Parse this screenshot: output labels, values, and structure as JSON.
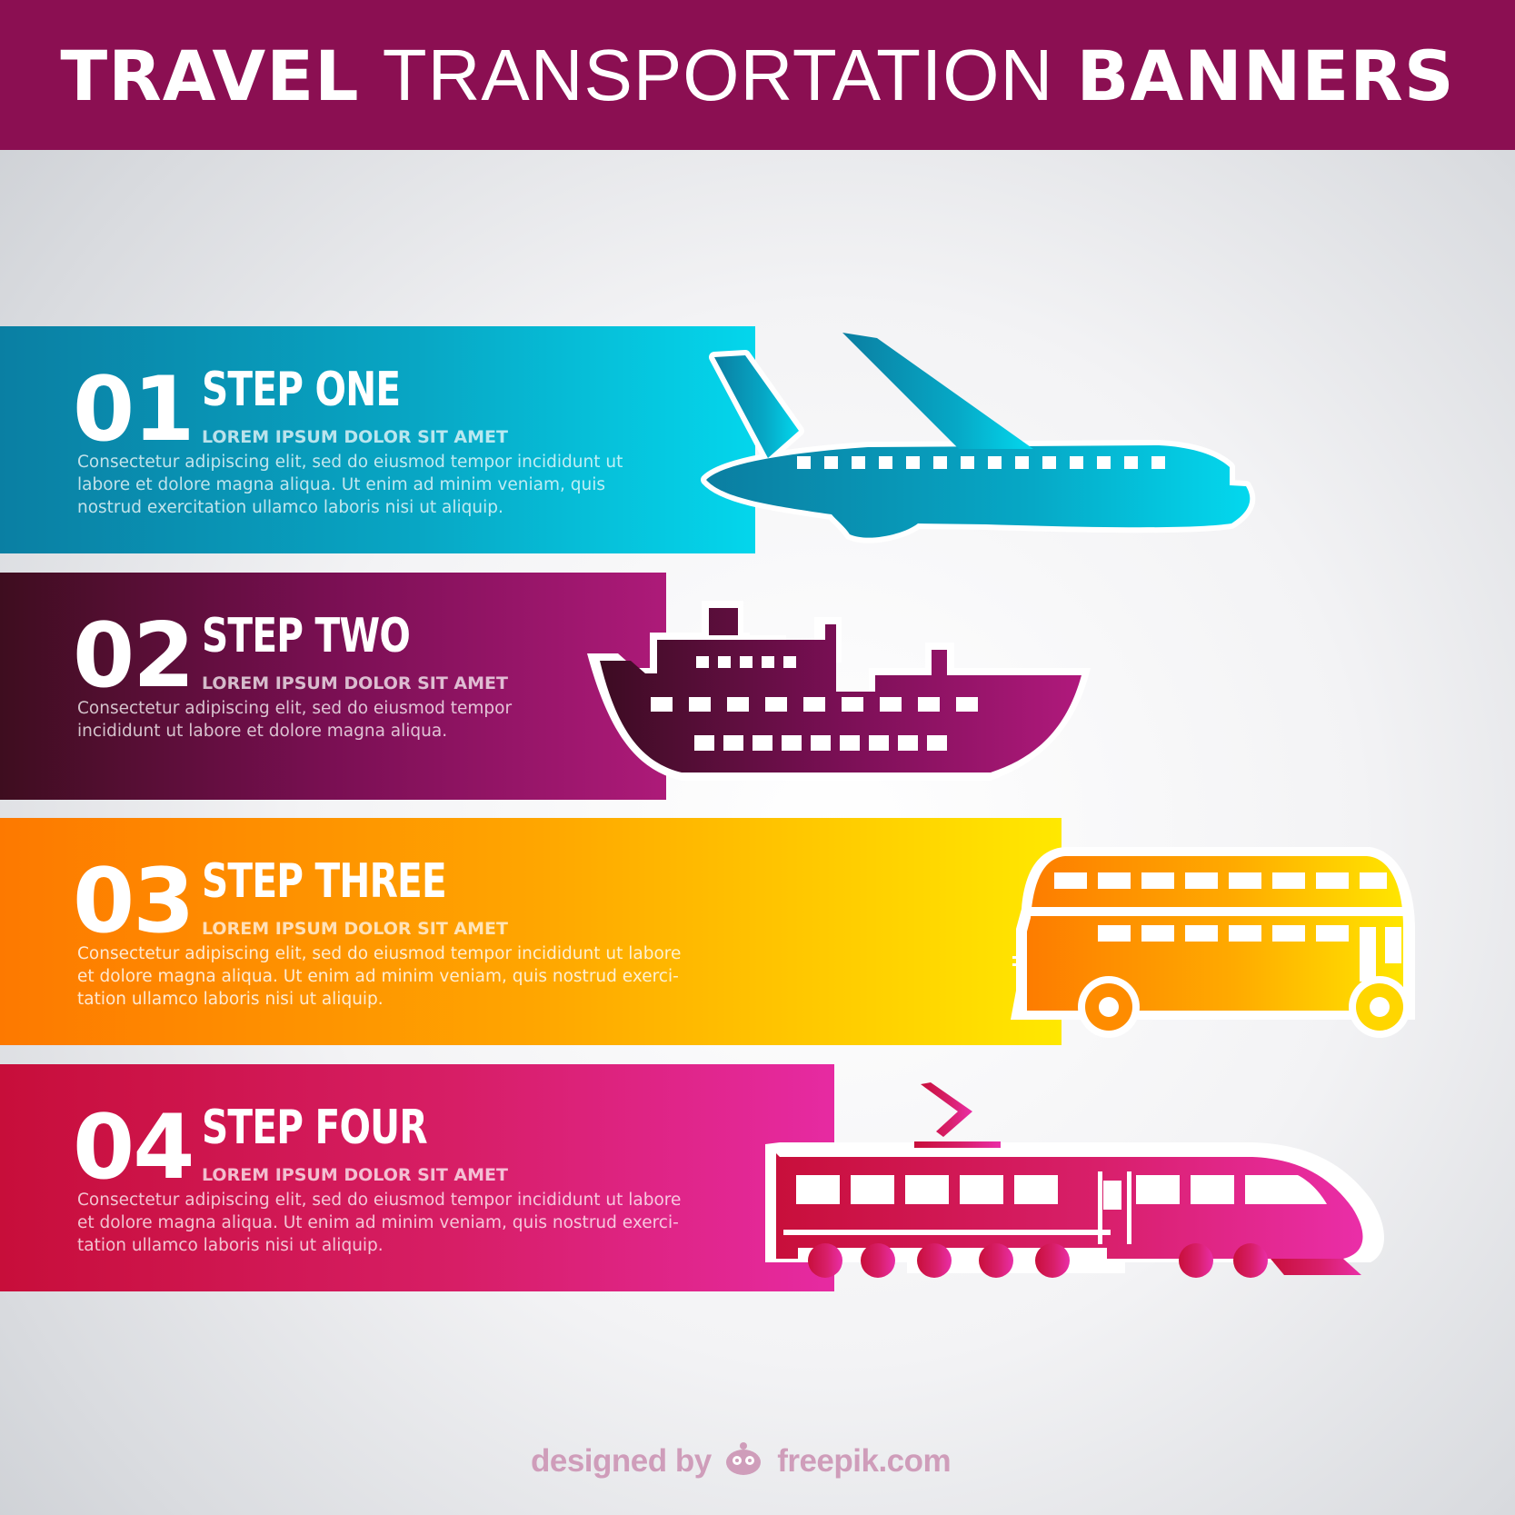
{
  "header": {
    "title_part1": "TRAVEL",
    "title_part2": "TRANSPORTATION",
    "title_part3": "BANNERS",
    "background": "#8b0f52"
  },
  "steps": [
    {
      "number": "01",
      "title": "STEP ONE",
      "subtitle": "LOREM IPSUM DOLOR SIT AMET",
      "text": "Consectetur adipiscing elit, sed do eiusmod tempor incididunt ut\nlabore et dolore magna aliqua. Ut enim ad minim veniam, quis\nnostrud exercitation ullamco laboris nisi ut aliquip.",
      "icon": "airplane-icon",
      "colors": [
        "#0a7fa3",
        "#04d6ec"
      ]
    },
    {
      "number": "02",
      "title": "STEP TWO",
      "subtitle": "LOREM IPSUM DOLOR SIT AMET",
      "text": "Consectetur adipiscing elit, sed do eiusmod tempor\nincididunt ut labore et dolore magna aliqua.",
      "icon": "ship-icon",
      "colors": [
        "#3e0d1f",
        "#ad1a79"
      ]
    },
    {
      "number": "03",
      "title": "STEP THREE",
      "subtitle": "LOREM IPSUM DOLOR SIT AMET",
      "text": "Consectetur adipiscing elit, sed do eiusmod tempor incididunt ut labore\net dolore magna aliqua. Ut enim ad minim veniam, quis nostrud exerci-\ntation ullamco laboris nisi ut aliquip.",
      "icon": "bus-icon",
      "colors": [
        "#fd7900",
        "#ffe800"
      ]
    },
    {
      "number": "04",
      "title": "STEP FOUR",
      "subtitle": "LOREM IPSUM DOLOR SIT AMET",
      "text": "Consectetur adipiscing elit, sed do eiusmod tempor incididunt ut labore\net dolore magna aliqua. Ut enim ad minim veniam, quis nostrud exerci-\ntation ullamco laboris nisi ut aliquip.",
      "icon": "train-icon",
      "colors": [
        "#c70e3a",
        "#e62aa2"
      ]
    }
  ],
  "credit": {
    "prefix": "designed by",
    "brand": "freepik.com",
    "icon": "freepik-logo-icon",
    "color": "#cf9dba"
  }
}
